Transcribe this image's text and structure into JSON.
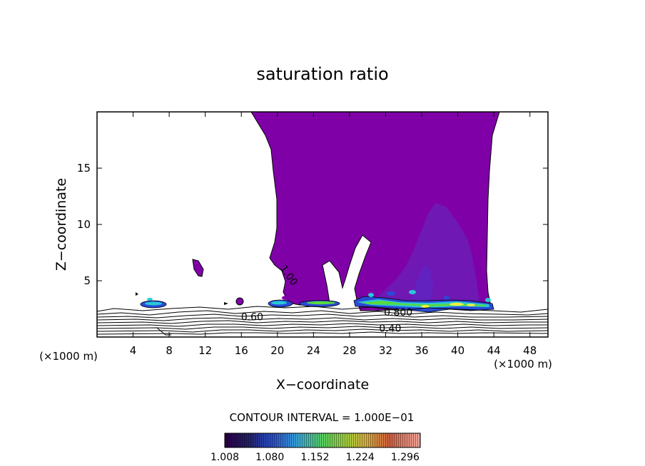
{
  "chart_data": {
    "type": "contour",
    "title": "saturation ratio",
    "xlabel": "X−coordinate",
    "ylabel": "Z−coordinate",
    "x_unit_left": "(×1000 m)",
    "x_unit_right": "(×1000 m)",
    "xlim": [
      0,
      50
    ],
    "ylim": [
      0,
      20
    ],
    "x_ticks": [
      4,
      8,
      12,
      16,
      20,
      24,
      28,
      32,
      36,
      40,
      44,
      48
    ],
    "x_tick_labels": [
      "4",
      "8",
      "12",
      "16",
      "20",
      "24",
      "28",
      "32",
      "36",
      "40",
      "44",
      "48"
    ],
    "y_ticks": [
      5,
      10,
      15
    ],
    "y_tick_labels": [
      "5",
      "10",
      "15"
    ],
    "contour_labels": [
      {
        "text": "1.00",
        "x": 21.3,
        "y": 5.5
      },
      {
        "text": "0.60",
        "x": 17.2,
        "y": 1.8
      },
      {
        "text": "0.800",
        "x": 33.4,
        "y": 2.2
      },
      {
        "text": "0.40",
        "x": 32.5,
        "y": 0.8
      }
    ],
    "contour_interval_text": "CONTOUR INTERVAL = 1.000E−01",
    "colorbar": {
      "min": 1.008,
      "max": 1.32,
      "tick_labels": [
        "1.008",
        "1.080",
        "1.152",
        "1.224",
        "1.296"
      ],
      "tick_values": [
        1.008,
        1.08,
        1.152,
        1.224,
        1.296
      ]
    },
    "colors": {
      "supersaturated": "#8000a8",
      "dense_core": "#6a20b8",
      "contour_line": "#000000",
      "cyan": "#29c8d8",
      "green": "#58d840",
      "yellow": "#f0f040",
      "blue": "#2a4ad8"
    }
  }
}
